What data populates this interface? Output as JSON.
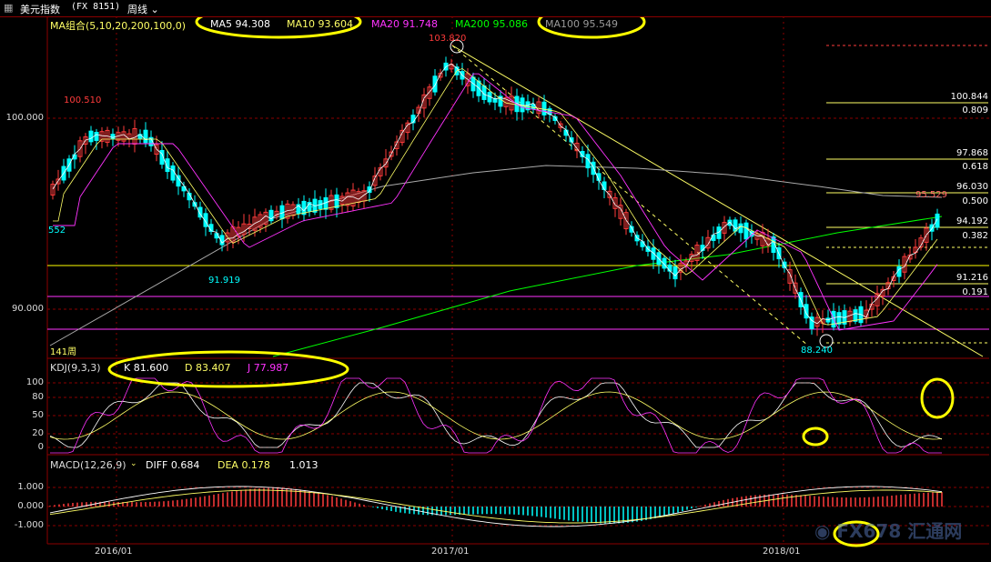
{
  "window": {
    "title": "美元指数",
    "code": "(FX 8151)",
    "period": "周线"
  },
  "colors": {
    "up": "#ff3b3b",
    "down": "#00ffff",
    "ma5": "#ffffff",
    "ma10": "#ffff66",
    "ma20": "#ff33ff",
    "ma200": "#00ff00",
    "ma100": "#aaaaaa",
    "grid": "#8b0000",
    "highlight": "#ffff00"
  },
  "ma_panel": {
    "label": "MA组合(5,10,20,200,100,0)",
    "ma5": "MA5 94.308",
    "ma10": "MA10 93.604",
    "ma20": "MA20 91.748",
    "ma200": "MA200 95.086",
    "ma100": "MA100 95.549"
  },
  "price_axis": {
    "t100": "100.000",
    "t90": "90.000"
  },
  "annotations": {
    "high": "103.820",
    "left_high": "100.510",
    "left_low_value": "552",
    "mid_low": "91.919",
    "low": "88.240",
    "current": "95.529",
    "last": "94.192",
    "weeks": "141周"
  },
  "fib_levels": [
    {
      "price": "100.844",
      "ratio": "0.809"
    },
    {
      "price": "97.868",
      "ratio": "0.618"
    },
    {
      "price": "96.030",
      "ratio": "0.500"
    },
    {
      "price": "94.192",
      "ratio": "0.382"
    },
    {
      "price": "91.216",
      "ratio": "0.191"
    }
  ],
  "kdj_panel": {
    "label": "KDJ(9,3,3)",
    "k": "K 81.600",
    "d": "D 83.407",
    "j": "J 77.987",
    "ticks": [
      "100",
      "80",
      "50",
      "20",
      "0"
    ]
  },
  "macd_panel": {
    "label": "MACD(12,26,9)",
    "diff": "DIFF 0.684",
    "dea": "DEA 0.178",
    "macd": "1.013",
    "ticks": [
      "1.000",
      "0.000",
      "-1.000"
    ]
  },
  "x_axis": [
    "2016/01",
    "2017/01",
    "2018/01"
  ],
  "watermark": "FX678 汇通网"
}
